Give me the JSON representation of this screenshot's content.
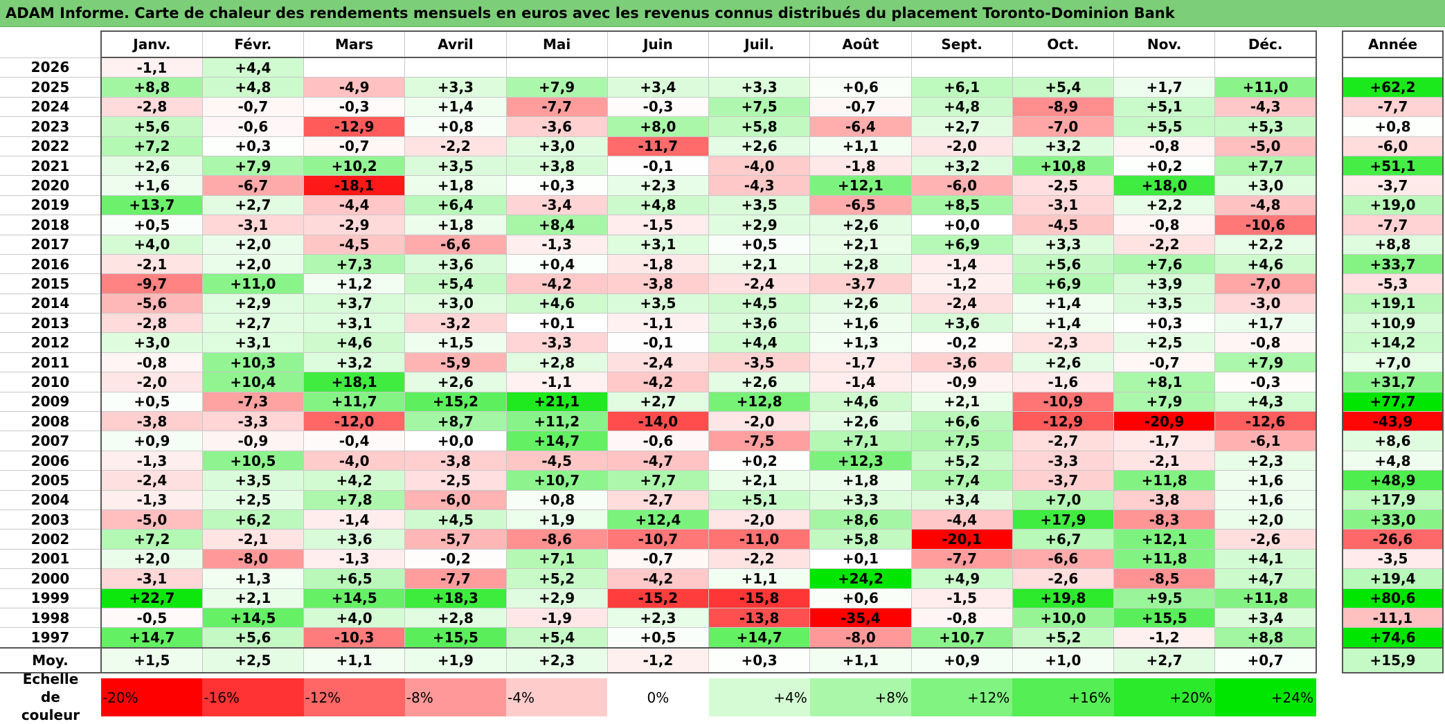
{
  "title": "ADAM Informe. Carte de chaleur des rendements mensuels en euros avec les revenus connus distribués du placement Toronto-Dominion Bank",
  "colors": {
    "title_bar": "#7ccf78",
    "max_red": "#ff0000",
    "max_green": "#00e600",
    "neutral": "#ffffff"
  },
  "chart_data": {
    "type": "heatmap",
    "title": "ADAM Informe. Carte de chaleur des rendements mensuels en euros avec les revenus connus distribués du placement Toronto-Dominion Bank",
    "months": [
      "Janv.",
      "Févr.",
      "Mars",
      "Avril",
      "Mai",
      "Juin",
      "Juil.",
      "Août",
      "Sept.",
      "Oct.",
      "Nov.",
      "Déc."
    ],
    "year_header": "Année",
    "avg_label": "Moy.",
    "rows": [
      {
        "year": "2026",
        "values": [
          "-1,1",
          "+4,4",
          "",
          "",
          "",
          "",
          "",
          "",
          "",
          "",
          "",
          ""
        ],
        "total": ""
      },
      {
        "year": "2025",
        "values": [
          "+8,8",
          "+4,8",
          "-4,9",
          "+3,3",
          "+7,9",
          "+3,4",
          "+3,3",
          "+0,6",
          "+6,1",
          "+5,4",
          "+1,7",
          "+11,0"
        ],
        "total": "+62,2"
      },
      {
        "year": "2024",
        "values": [
          "-2,8",
          "-0,7",
          "-0,3",
          "+1,4",
          "-7,7",
          "-0,3",
          "+7,5",
          "-0,7",
          "+4,8",
          "-8,9",
          "+5,1",
          "-4,3"
        ],
        "total": "-7,7"
      },
      {
        "year": "2023",
        "values": [
          "+5,6",
          "-0,6",
          "-12,9",
          "+0,8",
          "-3,6",
          "+8,0",
          "+5,8",
          "-6,4",
          "+2,7",
          "-7,0",
          "+5,5",
          "+5,3"
        ],
        "total": "+0,8"
      },
      {
        "year": "2022",
        "values": [
          "+7,2",
          "+0,3",
          "-0,7",
          "-2,2",
          "+3,0",
          "-11,7",
          "+2,6",
          "+1,1",
          "-2,0",
          "+3,2",
          "-0,8",
          "-5,0"
        ],
        "total": "-6,0"
      },
      {
        "year": "2021",
        "values": [
          "+2,6",
          "+7,9",
          "+10,2",
          "+3,5",
          "+3,8",
          "-0,1",
          "-4,0",
          "-1,8",
          "+3,2",
          "+10,8",
          "+0,2",
          "+7,7"
        ],
        "total": "+51,1"
      },
      {
        "year": "2020",
        "values": [
          "+1,6",
          "-6,7",
          "-18,1",
          "+1,8",
          "+0,3",
          "+2,3",
          "-4,3",
          "+12,1",
          "-6,0",
          "-2,5",
          "+18,0",
          "+3,0"
        ],
        "total": "-3,7"
      },
      {
        "year": "2019",
        "values": [
          "+13,7",
          "+2,7",
          "-4,4",
          "+6,4",
          "-3,4",
          "+4,8",
          "+3,5",
          "-6,5",
          "+8,5",
          "-3,1",
          "+2,2",
          "-4,8"
        ],
        "total": "+19,0"
      },
      {
        "year": "2018",
        "values": [
          "+0,5",
          "-3,1",
          "-2,9",
          "+1,8",
          "+8,4",
          "-1,5",
          "+2,9",
          "+2,6",
          "+0,0",
          "-4,5",
          "-0,8",
          "-10,6"
        ],
        "total": "-7,7"
      },
      {
        "year": "2017",
        "values": [
          "+4,0",
          "+2,0",
          "-4,5",
          "-6,6",
          "-1,3",
          "+3,1",
          "+0,5",
          "+2,1",
          "+6,9",
          "+3,3",
          "-2,2",
          "+2,2"
        ],
        "total": "+8,8"
      },
      {
        "year": "2016",
        "values": [
          "-2,1",
          "+2,0",
          "+7,3",
          "+3,6",
          "+0,4",
          "-1,8",
          "+2,1",
          "+2,8",
          "-1,4",
          "+5,6",
          "+7,6",
          "+4,6"
        ],
        "total": "+33,7"
      },
      {
        "year": "2015",
        "values": [
          "-9,7",
          "+11,0",
          "+1,2",
          "+5,4",
          "-4,2",
          "-3,8",
          "-2,4",
          "-3,7",
          "-1,2",
          "+6,9",
          "+3,9",
          "-7,0"
        ],
        "total": "-5,3"
      },
      {
        "year": "2014",
        "values": [
          "-5,6",
          "+2,9",
          "+3,7",
          "+3,0",
          "+4,6",
          "+3,5",
          "+4,5",
          "+2,6",
          "-2,4",
          "+1,4",
          "+3,5",
          "-3,0"
        ],
        "total": "+19,1"
      },
      {
        "year": "2013",
        "values": [
          "-2,8",
          "+2,7",
          "+3,1",
          "-3,2",
          "+0,1",
          "-1,1",
          "+3,6",
          "+1,6",
          "+3,6",
          "+1,4",
          "+0,3",
          "+1,7"
        ],
        "total": "+10,9"
      },
      {
        "year": "2012",
        "values": [
          "+3,0",
          "+3,1",
          "+4,6",
          "+1,5",
          "-3,3",
          "-0,1",
          "+4,4",
          "+1,3",
          "-0,2",
          "-2,3",
          "+2,5",
          "-0,8"
        ],
        "total": "+14,2"
      },
      {
        "year": "2011",
        "values": [
          "-0,8",
          "+10,3",
          "+3,2",
          "-5,9",
          "+2,8",
          "-2,4",
          "-3,5",
          "-1,7",
          "-3,6",
          "+2,6",
          "-0,7",
          "+7,9"
        ],
        "total": "+7,0"
      },
      {
        "year": "2010",
        "values": [
          "-2,0",
          "+10,4",
          "+18,1",
          "+2,6",
          "-1,1",
          "-4,2",
          "+2,6",
          "-1,4",
          "-0,9",
          "-1,6",
          "+8,1",
          "-0,3"
        ],
        "total": "+31,7"
      },
      {
        "year": "2009",
        "values": [
          "+0,5",
          "-7,3",
          "+11,7",
          "+15,2",
          "+21,1",
          "+2,7",
          "+12,8",
          "+4,6",
          "+2,1",
          "-10,9",
          "+7,9",
          "+4,3"
        ],
        "total": "+77,7"
      },
      {
        "year": "2008",
        "values": [
          "-3,8",
          "-3,3",
          "-12,0",
          "+8,7",
          "+11,2",
          "-14,0",
          "-2,0",
          "+2,6",
          "+6,6",
          "-12,9",
          "-20,9",
          "-12,6"
        ],
        "total": "-43,9"
      },
      {
        "year": "2007",
        "values": [
          "+0,9",
          "-0,9",
          "-0,4",
          "+0,0",
          "+14,7",
          "-0,6",
          "-7,5",
          "+7,1",
          "+7,5",
          "-2,7",
          "-1,7",
          "-6,1"
        ],
        "total": "+8,6"
      },
      {
        "year": "2006",
        "values": [
          "-1,3",
          "+10,5",
          "-4,0",
          "-3,8",
          "-4,5",
          "-4,7",
          "+0,2",
          "+12,3",
          "+5,2",
          "-3,3",
          "-2,1",
          "+2,3"
        ],
        "total": "+4,8"
      },
      {
        "year": "2005",
        "values": [
          "-2,4",
          "+3,5",
          "+4,2",
          "-2,5",
          "+10,7",
          "+7,7",
          "+2,1",
          "+1,8",
          "+7,4",
          "-3,7",
          "+11,8",
          "+1,6"
        ],
        "total": "+48,9"
      },
      {
        "year": "2004",
        "values": [
          "-1,3",
          "+2,5",
          "+7,8",
          "-6,0",
          "+0,8",
          "-2,7",
          "+5,1",
          "+3,3",
          "+3,4",
          "+7,0",
          "-3,8",
          "+1,6"
        ],
        "total": "+17,9"
      },
      {
        "year": "2003",
        "values": [
          "-5,0",
          "+6,2",
          "-1,4",
          "+4,5",
          "+1,9",
          "+12,4",
          "-2,0",
          "+8,6",
          "-4,4",
          "+17,9",
          "-8,3",
          "+2,0"
        ],
        "total": "+33,0"
      },
      {
        "year": "2002",
        "values": [
          "+7,2",
          "-2,1",
          "+3,6",
          "-5,7",
          "-8,6",
          "-10,7",
          "-11,0",
          "+5,8",
          "-20,1",
          "+6,7",
          "+12,1",
          "-2,6"
        ],
        "total": "-26,6"
      },
      {
        "year": "2001",
        "values": [
          "+2,0",
          "-8,0",
          "-1,3",
          "-0,2",
          "+7,1",
          "-0,7",
          "-2,2",
          "+0,1",
          "-7,7",
          "-6,6",
          "+11,8",
          "+4,1"
        ],
        "total": "-3,5"
      },
      {
        "year": "2000",
        "values": [
          "-3,1",
          "+1,3",
          "+6,5",
          "-7,7",
          "+5,2",
          "-4,2",
          "+1,1",
          "+24,2",
          "+4,9",
          "-2,6",
          "-8,5",
          "+4,7"
        ],
        "total": "+19,4"
      },
      {
        "year": "1999",
        "values": [
          "+22,7",
          "+2,1",
          "+14,5",
          "+18,3",
          "+2,9",
          "-15,2",
          "-15,8",
          "+0,6",
          "-1,5",
          "+19,8",
          "+9,5",
          "+11,8"
        ],
        "total": "+80,6"
      },
      {
        "year": "1998",
        "values": [
          "-0,5",
          "+14,5",
          "+4,0",
          "+2,8",
          "-1,9",
          "+2,3",
          "-13,8",
          "-35,4",
          "-0,8",
          "+10,0",
          "+15,5",
          "+3,4"
        ],
        "total": "-11,1"
      },
      {
        "year": "1997",
        "values": [
          "+14,7",
          "+5,6",
          "-10,3",
          "+15,5",
          "+5,4",
          "+0,5",
          "+14,7",
          "-8,0",
          "+10,7",
          "+5,2",
          "-1,2",
          "+8,8"
        ],
        "total": "+74,6"
      }
    ],
    "averages": [
      "+1,5",
      "+2,5",
      "+1,1",
      "+1,9",
      "+2,3",
      "-1,2",
      "+0,3",
      "+1,1",
      "+0,9",
      "+1,0",
      "+2,7",
      "+0,7"
    ],
    "avg_total": "+15,9",
    "scale": {
      "label_line1": "Echelle de",
      "label_line2": "couleur",
      "ticks": [
        "-20%",
        "-16%",
        "-12%",
        "-8%",
        "-4%",
        "0%",
        "+4%",
        "+8%",
        "+12%",
        "+16%",
        "+20%",
        "+24%"
      ],
      "tick_values": [
        -20,
        -16,
        -12,
        -8,
        -4,
        0,
        4,
        8,
        12,
        16,
        20,
        24
      ]
    }
  }
}
